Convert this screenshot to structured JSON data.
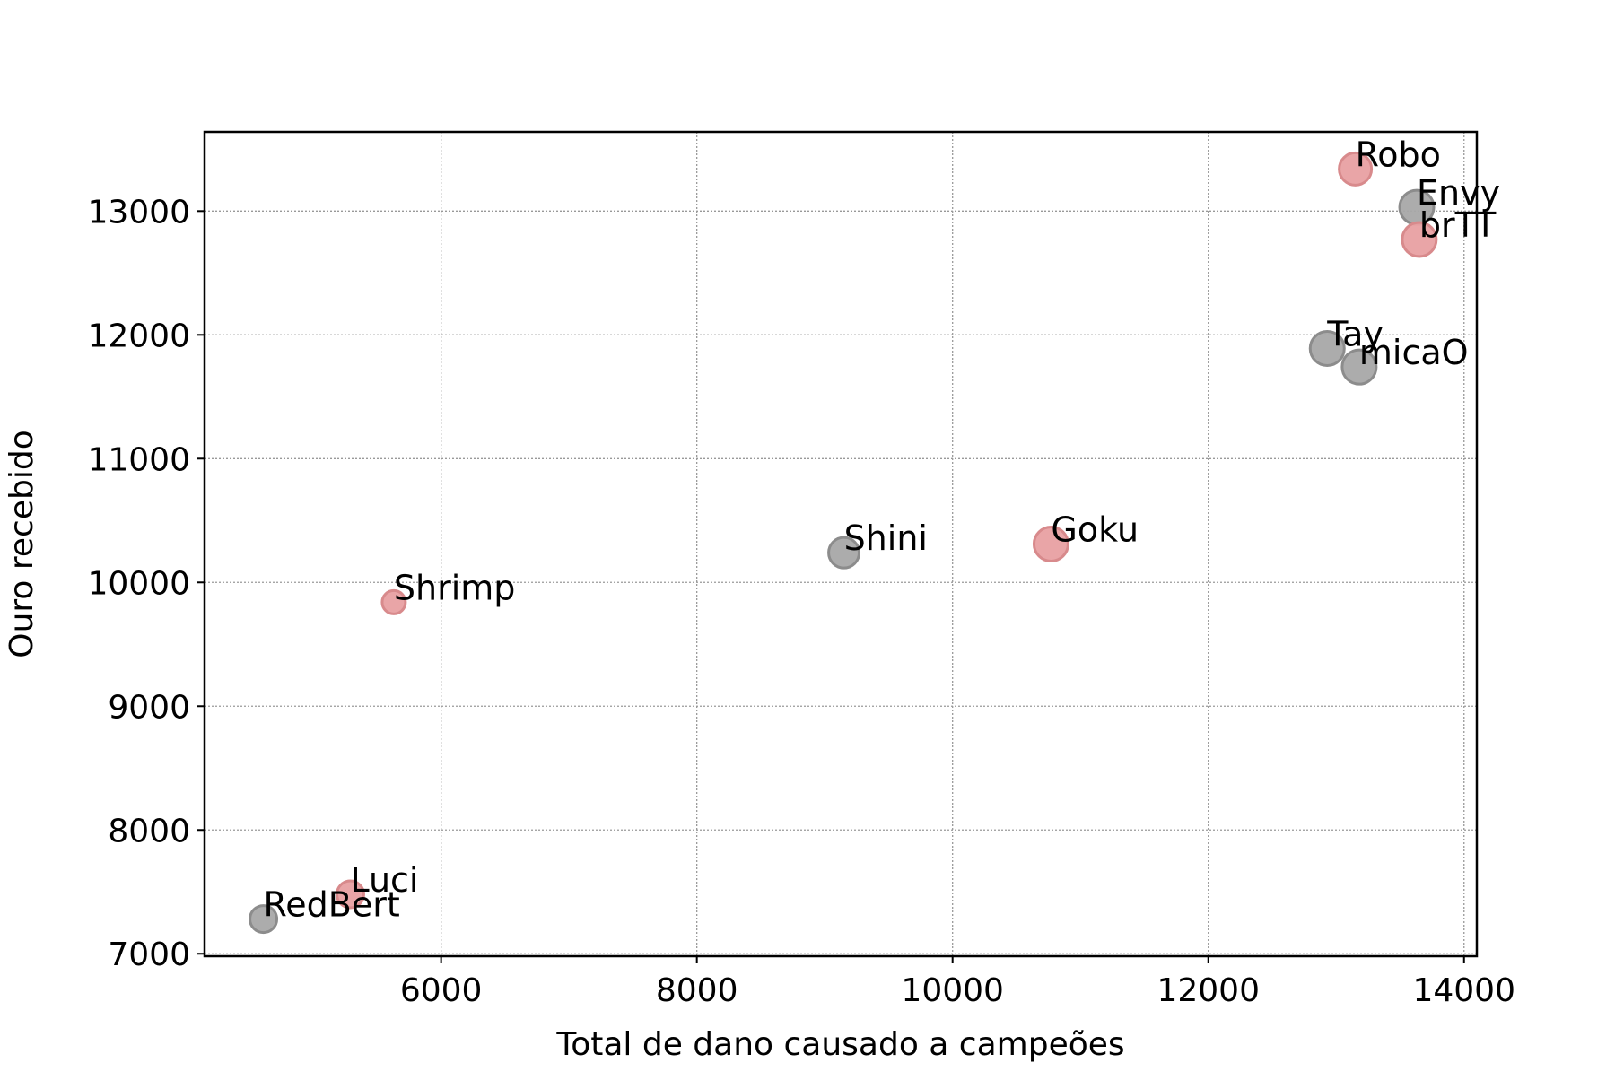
{
  "chart_data": {
    "type": "scatter",
    "title": "",
    "xlabel": "Total de dano causado a campeões",
    "ylabel": "Ouro recebido",
    "xlim": [
      4150,
      14100
    ],
    "ylim": [
      6980,
      13640
    ],
    "xticks": [
      6000,
      8000,
      10000,
      12000,
      14000
    ],
    "yticks": [
      7000,
      8000,
      9000,
      10000,
      11000,
      12000,
      13000
    ],
    "grid": true,
    "colors": {
      "red": "#e8a0a2",
      "gray": "#a8a8a8"
    },
    "points": [
      {
        "label": "Robo",
        "x": 13150,
        "y": 13340,
        "group": "red",
        "size": 18
      },
      {
        "label": "Envy",
        "x": 13630,
        "y": 13030,
        "group": "gray",
        "size": 19
      },
      {
        "label": "brTT",
        "x": 13650,
        "y": 12770,
        "group": "red",
        "size": 19
      },
      {
        "label": "Tay",
        "x": 12930,
        "y": 11890,
        "group": "gray",
        "size": 19
      },
      {
        "label": "micaO",
        "x": 13180,
        "y": 11740,
        "group": "gray",
        "size": 19
      },
      {
        "label": "Shini",
        "x": 9150,
        "y": 10240,
        "group": "gray",
        "size": 17
      },
      {
        "label": "Goku",
        "x": 10770,
        "y": 10310,
        "group": "red",
        "size": 19
      },
      {
        "label": "Shrimp",
        "x": 5630,
        "y": 9840,
        "group": "red",
        "size": 13
      },
      {
        "label": "Luci",
        "x": 5290,
        "y": 7480,
        "group": "red",
        "size": 15
      },
      {
        "label": "RedBert",
        "x": 4610,
        "y": 7280,
        "group": "gray",
        "size": 15
      }
    ]
  }
}
